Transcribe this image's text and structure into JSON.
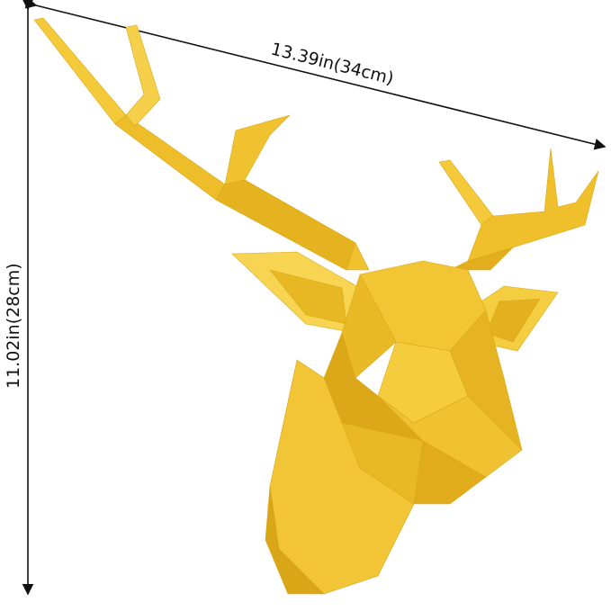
{
  "product": {
    "color": "#F0C02E",
    "icon": "geometric-deer-head"
  },
  "dimensions": {
    "width_label": "13.39in(34cm)",
    "height_label": "11.02in(28cm)"
  }
}
